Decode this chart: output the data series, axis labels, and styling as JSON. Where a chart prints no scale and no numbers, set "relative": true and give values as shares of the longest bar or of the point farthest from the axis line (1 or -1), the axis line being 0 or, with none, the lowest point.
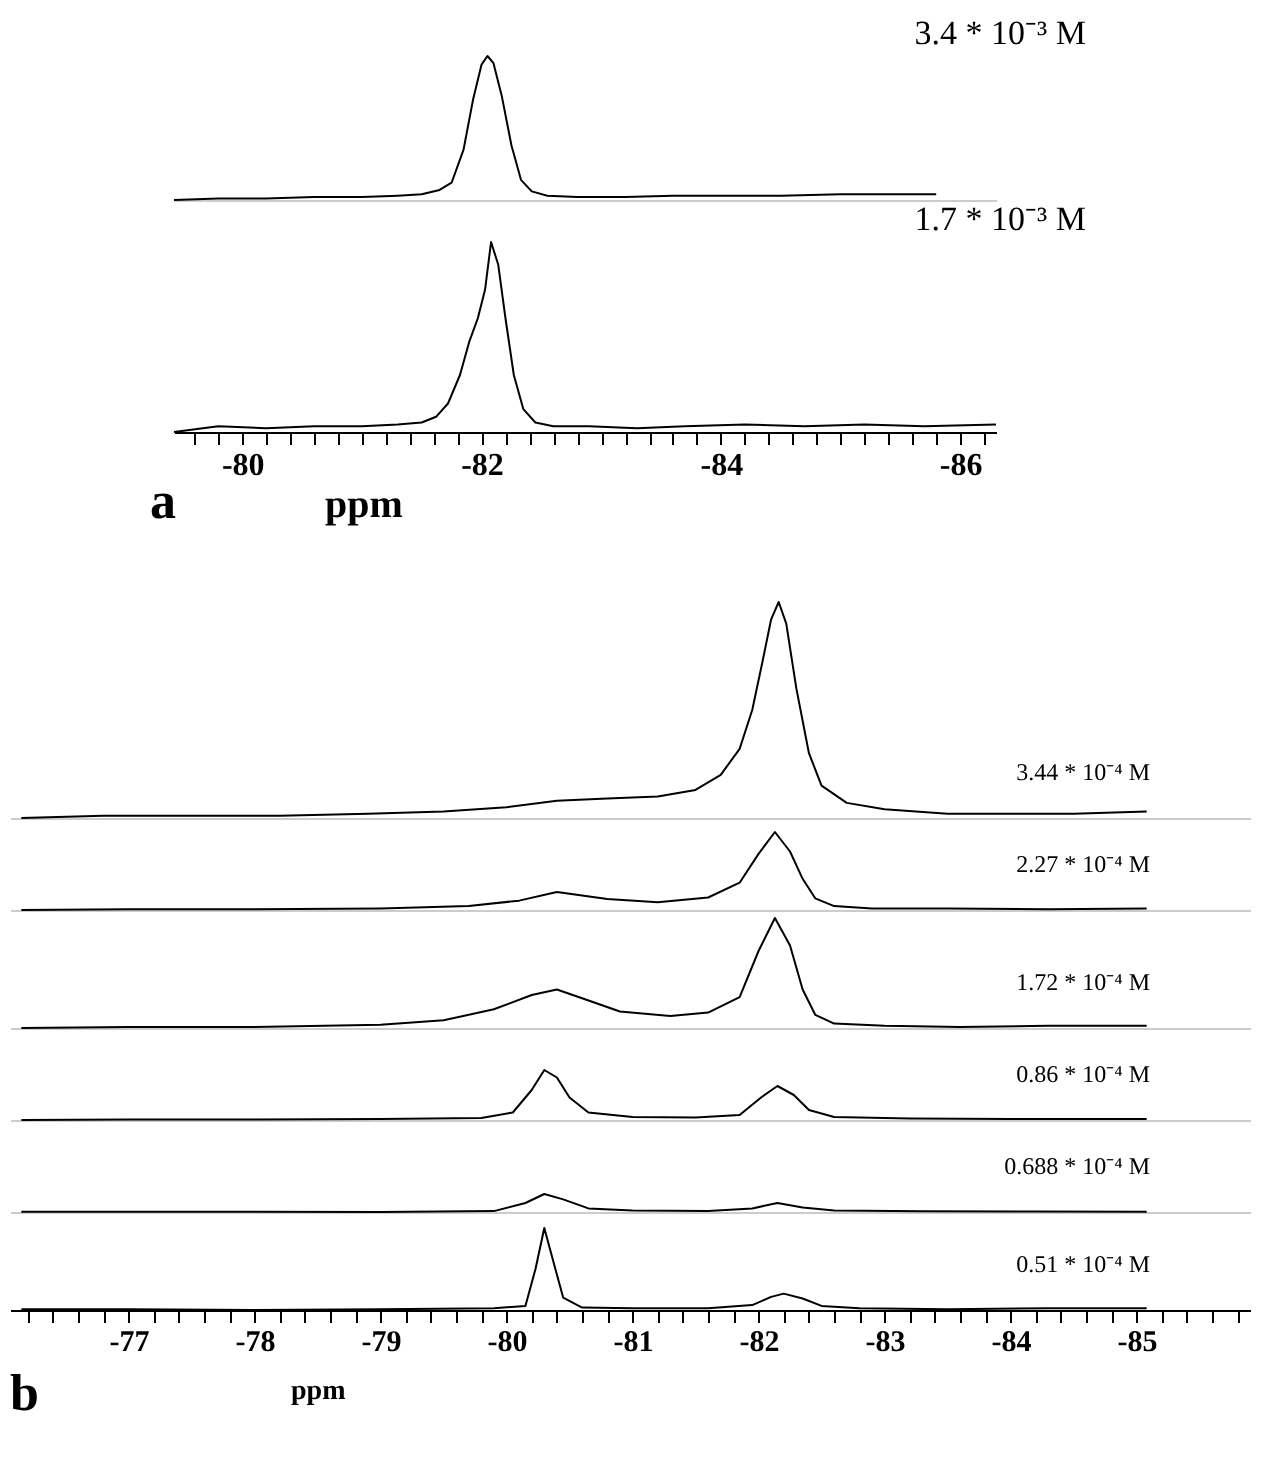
{
  "chart_data": [
    {
      "type": "line",
      "relative": true,
      "xlim": [
        -79.43,
        -86.3
      ],
      "tick_labels": false,
      "x": [
        -79.43,
        -79.8,
        -80.2,
        -80.6,
        -81,
        -81.3,
        -81.5,
        -81.65,
        -81.75,
        -81.85,
        -81.93,
        -82,
        -82.05,
        -82.1,
        -82.17,
        -82.25,
        -82.33,
        -82.42,
        -82.55,
        -82.8,
        -83.2,
        -83.6,
        -84,
        -84.5,
        -85,
        -85.4,
        -85.8
      ],
      "series": [
        {
          "name": "3.4 * 10⁻³ M",
          "color": "#000000",
          "values": [
            0.0,
            0.01,
            0.01,
            0.02,
            0.02,
            0.03,
            0.04,
            0.07,
            0.12,
            0.35,
            0.7,
            0.94,
            1,
            0.95,
            0.72,
            0.38,
            0.14,
            0.06,
            0.03,
            0.02,
            0.02,
            0.03,
            0.03,
            0.03,
            0.04,
            0.04,
            0.04
          ]
        }
      ]
    },
    {
      "type": "line",
      "relative": true,
      "xlim": [
        -79.43,
        -86.3
      ],
      "tick_labels": "x",
      "xlabel": "ppm",
      "annotations": [
        "a"
      ],
      "xticks": [
        {
          "value": -79.6,
          "label": null
        },
        {
          "value": -79.8,
          "label": null
        },
        -80,
        {
          "value": -80.2,
          "label": null
        },
        {
          "value": -80.4,
          "label": null
        },
        {
          "value": -80.6,
          "label": null
        },
        {
          "value": -80.8,
          "label": null
        },
        {
          "value": -81,
          "label": null
        },
        {
          "value": -81.2,
          "label": null
        },
        {
          "value": -81.4,
          "label": null
        },
        {
          "value": -81.6,
          "label": null
        },
        {
          "value": -81.8,
          "label": null
        },
        -82,
        {
          "value": -82.2,
          "label": null
        },
        {
          "value": -82.4,
          "label": null
        },
        {
          "value": -82.6,
          "label": null
        },
        {
          "value": -82.8,
          "label": null
        },
        {
          "value": -83,
          "label": null
        },
        {
          "value": -83.2,
          "label": null
        },
        {
          "value": -83.4,
          "label": null
        },
        {
          "value": -83.6,
          "label": null
        },
        {
          "value": -83.8,
          "label": null
        },
        -84,
        {
          "value": -84.2,
          "label": null
        },
        {
          "value": -84.4,
          "label": null
        },
        {
          "value": -84.6,
          "label": null
        },
        {
          "value": -84.8,
          "label": null
        },
        {
          "value": -85,
          "label": null
        },
        {
          "value": -85.2,
          "label": null
        },
        {
          "value": -85.4,
          "label": null
        },
        {
          "value": -85.6,
          "label": null
        },
        {
          "value": -85.8,
          "label": null
        },
        -86,
        {
          "value": -86.2,
          "label": null
        }
      ],
      "x": [
        -79.43,
        -79.8,
        -80.2,
        -80.6,
        -81,
        -81.3,
        -81.5,
        -81.62,
        -81.72,
        -81.82,
        -81.9,
        -81.97,
        -82.03,
        -82.08,
        -82.14,
        -82.2,
        -82.27,
        -82.35,
        -82.45,
        -82.6,
        -82.9,
        -83.3,
        -83.7,
        -84.2,
        -84.7,
        -85.2,
        -85.7,
        -86.3
      ],
      "series": [
        {
          "name": "1.7 * 10⁻³ M",
          "color": "#000000",
          "values": [
            0.0,
            0.03,
            0.02,
            0.03,
            0.03,
            0.04,
            0.05,
            0.08,
            0.15,
            0.3,
            0.48,
            0.6,
            0.75,
            1,
            0.88,
            0.6,
            0.3,
            0.12,
            0.05,
            0.03,
            0.03,
            0.02,
            0.03,
            0.04,
            0.03,
            0.04,
            0.03,
            0.04
          ]
        }
      ]
    },
    {
      "type": "line",
      "relative": true,
      "xlim": [
        -76.06,
        -85.9
      ],
      "tick_labels": false,
      "x": [
        -76.15,
        -76.8,
        -77.5,
        -78.2,
        -78.9,
        -79.5,
        -80,
        -80.4,
        -80.8,
        -81.2,
        -81.5,
        -81.7,
        -81.85,
        -81.95,
        -82.03,
        -82.1,
        -82.16,
        -82.22,
        -82.3,
        -82.4,
        -82.5,
        -82.7,
        -83,
        -83.5,
        -84,
        -84.5,
        -85.08
      ],
      "series": [
        {
          "name": "3.44 * 10⁻⁴ M",
          "color": "#000000",
          "values": [
            0.0,
            0.01,
            0.01,
            0.01,
            0.02,
            0.03,
            0.05,
            0.08,
            0.09,
            0.1,
            0.13,
            0.2,
            0.32,
            0.5,
            0.72,
            0.92,
            1,
            0.9,
            0.6,
            0.3,
            0.15,
            0.07,
            0.04,
            0.02,
            0.02,
            0.02,
            0.03
          ]
        }
      ]
    },
    {
      "type": "line",
      "relative": true,
      "xlim": [
        -76.06,
        -85.9
      ],
      "tick_labels": false,
      "x": [
        -76.15,
        -77,
        -78,
        -79,
        -79.7,
        -80.1,
        -80.4,
        -80.8,
        -81.2,
        -81.6,
        -81.85,
        -82,
        -82.13,
        -82.25,
        -82.35,
        -82.45,
        -82.6,
        -82.9,
        -83.5,
        -84.3,
        -85.08
      ],
      "series": [
        {
          "name": "2.27 * 10⁻⁴ M",
          "color": "#000000",
          "values": [
            0.0,
            0.01,
            0.01,
            0.02,
            0.05,
            0.12,
            0.23,
            0.14,
            0.1,
            0.16,
            0.35,
            0.72,
            1,
            0.75,
            0.4,
            0.15,
            0.05,
            0.02,
            0.02,
            0.01,
            0.02
          ]
        }
      ]
    },
    {
      "type": "line",
      "relative": true,
      "xlim": [
        -76.06,
        -85.9
      ],
      "tick_labels": false,
      "x": [
        -76.15,
        -77,
        -78,
        -79,
        -79.5,
        -79.9,
        -80.2,
        -80.4,
        -80.6,
        -80.9,
        -81.3,
        -81.6,
        -81.85,
        -82,
        -82.13,
        -82.25,
        -82.35,
        -82.45,
        -82.6,
        -83,
        -83.6,
        -84.3,
        -85.08
      ],
      "series": [
        {
          "name": "1.72 * 10⁻⁴ M",
          "color": "#000000",
          "values": [
            0.0,
            0.01,
            0.01,
            0.03,
            0.07,
            0.17,
            0.3,
            0.35,
            0.27,
            0.15,
            0.11,
            0.14,
            0.28,
            0.7,
            1,
            0.75,
            0.35,
            0.12,
            0.04,
            0.02,
            0.01,
            0.02,
            0.02
          ]
        }
      ]
    },
    {
      "type": "line",
      "relative": true,
      "xlim": [
        -76.06,
        -85.9
      ],
      "tick_labels": false,
      "x": [
        -76.15,
        -77,
        -78,
        -79,
        -79.8,
        -80.05,
        -80.2,
        -80.3,
        -80.4,
        -80.5,
        -80.65,
        -81,
        -81.5,
        -81.85,
        -82.02,
        -82.15,
        -82.28,
        -82.4,
        -82.6,
        -83.2,
        -84,
        -85.08
      ],
      "series": [
        {
          "name": "0.86 * 10⁻⁴ M",
          "color": "#000000",
          "values": [
            0.0,
            0.01,
            0.01,
            0.02,
            0.04,
            0.15,
            0.6,
            1,
            0.85,
            0.45,
            0.15,
            0.06,
            0.05,
            0.1,
            0.45,
            0.68,
            0.5,
            0.2,
            0.06,
            0.03,
            0.02,
            0.02
          ]
        }
      ]
    },
    {
      "type": "line",
      "relative": true,
      "xlim": [
        -76.06,
        -85.9
      ],
      "tick_labels": false,
      "x": [
        -76.15,
        -77,
        -78,
        -79,
        -79.9,
        -80.15,
        -80.3,
        -80.45,
        -80.65,
        -81,
        -81.6,
        -81.95,
        -82.15,
        -82.35,
        -82.6,
        -83.3,
        -84.2,
        -85.08
      ],
      "series": [
        {
          "name": "0.688 * 10⁻⁴ M",
          "color": "#000000",
          "values": [
            0.02,
            0.01,
            0.02,
            0.0,
            0.05,
            0.5,
            1,
            0.7,
            0.2,
            0.08,
            0.05,
            0.2,
            0.5,
            0.25,
            0.08,
            0.04,
            0.03,
            0.02
          ]
        }
      ]
    },
    {
      "type": "line",
      "relative": true,
      "xlim": [
        -76.06,
        -85.9
      ],
      "tick_labels": "x",
      "xlabel": "ppm",
      "annotations": [
        "b"
      ],
      "xticks": [
        {
          "value": -76.2,
          "label": null
        },
        {
          "value": -76.4,
          "label": null
        },
        {
          "value": -76.6,
          "label": null
        },
        {
          "value": -76.8,
          "label": null
        },
        -77,
        {
          "value": -77.2,
          "label": null
        },
        {
          "value": -77.4,
          "label": null
        },
        {
          "value": -77.6,
          "label": null
        },
        {
          "value": -77.8,
          "label": null
        },
        -78,
        {
          "value": -78.2,
          "label": null
        },
        {
          "value": -78.4,
          "label": null
        },
        {
          "value": -78.6,
          "label": null
        },
        {
          "value": -78.8,
          "label": null
        },
        -79,
        {
          "value": -79.2,
          "label": null
        },
        {
          "value": -79.4,
          "label": null
        },
        {
          "value": -79.6,
          "label": null
        },
        {
          "value": -79.8,
          "label": null
        },
        -80,
        {
          "value": -80.2,
          "label": null
        },
        {
          "value": -80.4,
          "label": null
        },
        {
          "value": -80.6,
          "label": null
        },
        {
          "value": -80.8,
          "label": null
        },
        -81,
        {
          "value": -81.2,
          "label": null
        },
        {
          "value": -81.4,
          "label": null
        },
        {
          "value": -81.6,
          "label": null
        },
        {
          "value": -81.8,
          "label": null
        },
        -82,
        {
          "value": -82.2,
          "label": null
        },
        {
          "value": -82.4,
          "label": null
        },
        {
          "value": -82.6,
          "label": null
        },
        {
          "value": -82.8,
          "label": null
        },
        -83,
        {
          "value": -83.2,
          "label": null
        },
        {
          "value": -83.4,
          "label": null
        },
        {
          "value": -83.6,
          "label": null
        },
        {
          "value": -83.8,
          "label": null
        },
        -84,
        {
          "value": -84.2,
          "label": null
        },
        {
          "value": -84.4,
          "label": null
        },
        {
          "value": -84.6,
          "label": null
        },
        {
          "value": -84.8,
          "label": null
        },
        -85,
        {
          "value": -85.2,
          "label": null
        },
        {
          "value": -85.4,
          "label": null
        },
        {
          "value": -85.6,
          "label": null
        },
        {
          "value": -85.8,
          "label": null
        }
      ],
      "x": [
        -76.15,
        -77,
        -78,
        -79,
        -79.9,
        -80.15,
        -80.23,
        -80.3,
        -80.37,
        -80.45,
        -80.6,
        -81,
        -81.6,
        -81.95,
        -82.1,
        -82.2,
        -82.35,
        -82.5,
        -82.8,
        -83.5,
        -84.3,
        -85.08
      ],
      "series": [
        {
          "name": "0.51 * 10⁻⁴ M",
          "color": "#000000",
          "values": [
            0.01,
            0.01,
            0.0,
            0.01,
            0.02,
            0.05,
            0.5,
            1,
            0.6,
            0.15,
            0.03,
            0.02,
            0.02,
            0.06,
            0.16,
            0.2,
            0.14,
            0.05,
            0.02,
            0.01,
            0.02,
            0.02
          ]
        }
      ]
    }
  ]
}
